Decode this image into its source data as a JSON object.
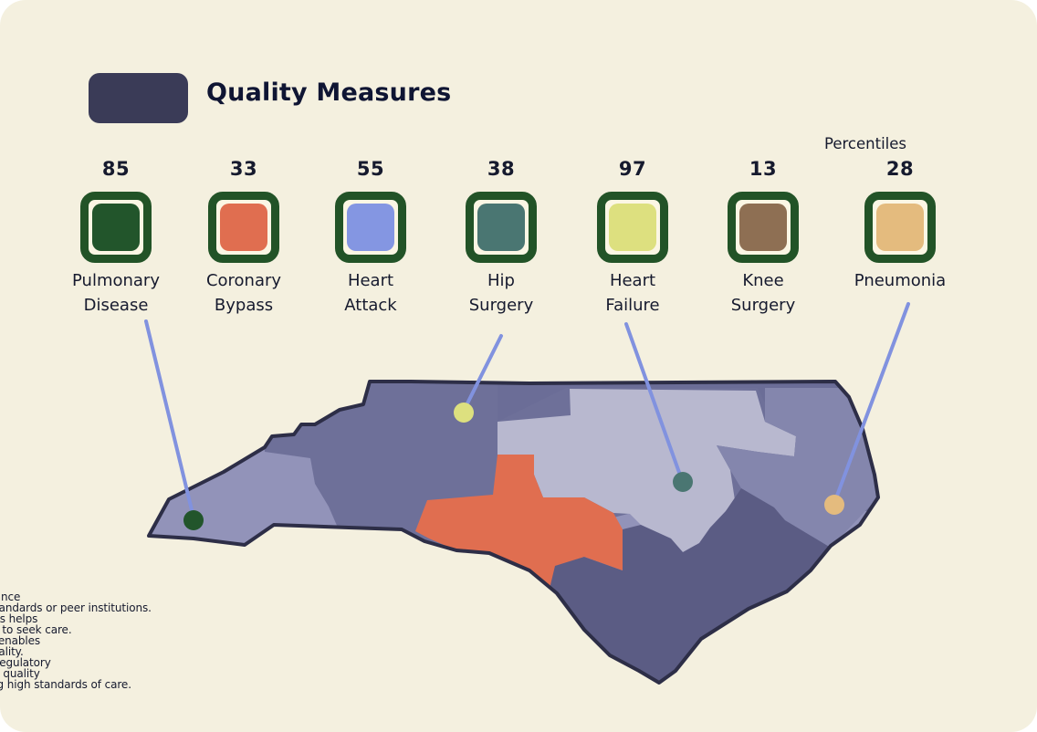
{
  "header": {
    "title": "Quality Measures",
    "swatch_color": "#3a3b57"
  },
  "unit_label": "Percentiles",
  "measures": [
    {
      "label": "Pulmonary\nDisease",
      "value": "85",
      "color": "#22552b"
    },
    {
      "label": "Coronary\nBypass",
      "value": "33",
      "color": "#e06e50"
    },
    {
      "label": "Heart\nAttack",
      "value": "55",
      "color": "#8496e2"
    },
    {
      "label": "Hip\nSurgery",
      "value": "38",
      "color": "#4a7672"
    },
    {
      "label": "Heart\nFailure",
      "value": "97",
      "color": "#dde07f"
    },
    {
      "label": "Knee\nSurgery",
      "value": "13",
      "color": "#8e6f53"
    },
    {
      "label": "Pneumonia",
      "value": "28",
      "color": "#e4bb7e"
    }
  ],
  "region_colors": {
    "west": "#9293b9",
    "northwest": "#6e7099",
    "north_strip": "#6b6d97",
    "central": "#b8b8cf",
    "east": "#8486ad",
    "south": "#5b5c84",
    "highlight": "#e06e50"
  },
  "connector_color": "#8192df",
  "description": "erformance\nustry standards or peer institutions.\n/ metrics helps\nt where to seek care.\nmance enables\n care quality.\nrs and regulatory\ntatus to quality\nntivizing high standards of care."
}
